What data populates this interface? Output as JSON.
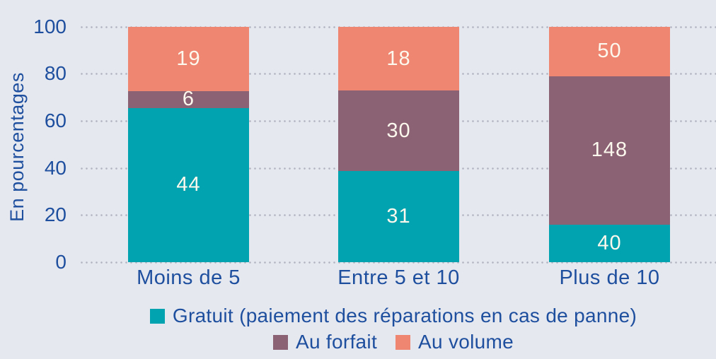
{
  "colors": {
    "background": "#e6e8f0",
    "axis_text": "#1e4f9e",
    "grid_dots": "#b3b5c0",
    "bar_label_text": "#fcf8ee"
  },
  "chart_data": {
    "type": "bar",
    "subtype": "stacked-100pct",
    "title": "",
    "ylabel": "En pourcentages",
    "xlabel": "",
    "ylim": [
      0,
      100
    ],
    "yticks": [
      0,
      20,
      40,
      60,
      80,
      100
    ],
    "grid": "dotted-horizontal",
    "legend_position": "bottom",
    "categories": [
      "Moins de 5",
      "Entre 5 et 10",
      "Plus de 10"
    ],
    "series": [
      {
        "name": "Gratuit (paiement des réparations en cas de panne)",
        "color": "#00a3af",
        "values": [
          44,
          31,
          40
        ],
        "heights_pct": [
          65.5,
          38.7,
          16.0
        ]
      },
      {
        "name": "Au forfait",
        "color": "#8b6274",
        "values": [
          6,
          30,
          148
        ],
        "heights_pct": [
          7.2,
          34.2,
          63.0
        ]
      },
      {
        "name": "Au volume",
        "color": "#ef8671",
        "values": [
          19,
          18,
          50
        ],
        "heights_pct": [
          27.3,
          27.1,
          21.0
        ]
      }
    ]
  }
}
